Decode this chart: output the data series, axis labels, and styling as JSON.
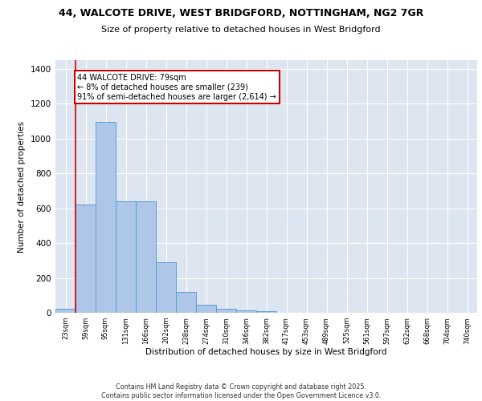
{
  "title_line1": "44, WALCOTE DRIVE, WEST BRIDGFORD, NOTTINGHAM, NG2 7GR",
  "title_line2": "Size of property relative to detached houses in West Bridgford",
  "xlabel": "Distribution of detached houses by size in West Bridgford",
  "ylabel": "Number of detached properties",
  "bin_labels": [
    "23sqm",
    "59sqm",
    "95sqm",
    "131sqm",
    "166sqm",
    "202sqm",
    "238sqm",
    "274sqm",
    "310sqm",
    "346sqm",
    "382sqm",
    "417sqm",
    "453sqm",
    "489sqm",
    "525sqm",
    "561sqm",
    "597sqm",
    "632sqm",
    "668sqm",
    "704sqm",
    "740sqm"
  ],
  "bar_values": [
    25,
    620,
    1095,
    640,
    640,
    290,
    120,
    48,
    22,
    14,
    8,
    0,
    0,
    0,
    0,
    0,
    0,
    0,
    0,
    0,
    0
  ],
  "bar_color": "#aec6e8",
  "bar_edge_color": "#5a9fd4",
  "vline_color": "#cc0000",
  "vline_x": 0.5,
  "annotation_text": "44 WALCOTE DRIVE: 79sqm\n← 8% of detached houses are smaller (239)\n91% of semi-detached houses are larger (2,614) →",
  "annotation_box_color": "#ffffff",
  "annotation_edge_color": "#cc0000",
  "ylim": [
    0,
    1450
  ],
  "yticks": [
    0,
    200,
    400,
    600,
    800,
    1000,
    1200,
    1400
  ],
  "bg_color": "#dde5f0",
  "grid_color": "#ffffff",
  "footer_line1": "Contains HM Land Registry data © Crown copyright and database right 2025.",
  "footer_line2": "Contains public sector information licensed under the Open Government Licence v3.0."
}
